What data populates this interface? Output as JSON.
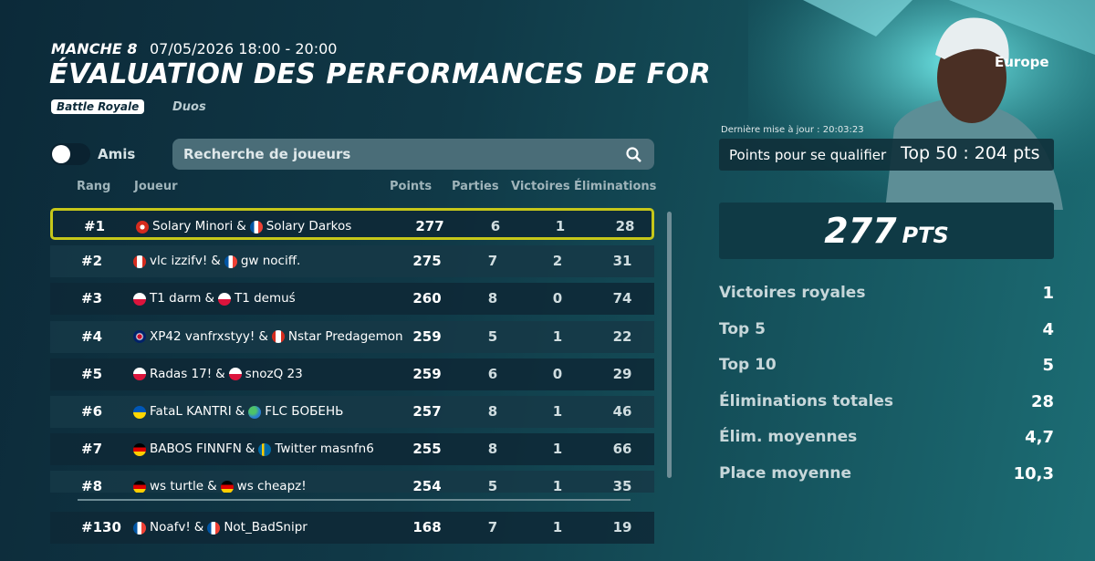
{
  "header": {
    "round": "MANCHE 8",
    "datetime": "07/05/2026 18:00 - 20:00",
    "title": "ÉVALUATION DES PERFORMANCES DE FOR",
    "mode": "Battle Royale",
    "team": "Duos"
  },
  "controls": {
    "toggle_label": "Amis",
    "search_placeholder": "Recherche de joueurs"
  },
  "table": {
    "columns": [
      "Rang",
      "Joueur",
      "Points",
      "Parties",
      "Victoires",
      "Éliminations"
    ],
    "separator": "&",
    "rows": [
      {
        "rank": "#1",
        "player1": "Solary Minori",
        "player2": "Solary Darkos",
        "points": 277,
        "games": 6,
        "wins": 1,
        "eliminations": 28
      },
      {
        "rank": "#2",
        "player1": "vlc izzifv!",
        "player2": "gw nociff.",
        "points": 275,
        "games": 7,
        "wins": 2,
        "eliminations": 31
      },
      {
        "rank": "#3",
        "player1": "T1 darm",
        "player2": "T1 demuś",
        "points": 260,
        "games": 8,
        "wins": 0,
        "eliminations": 74
      },
      {
        "rank": "#4",
        "player1": "XP42 vanfrxstyy!",
        "player2": "Nstar Predagemon",
        "points": 259,
        "games": 5,
        "wins": 1,
        "eliminations": 22
      },
      {
        "rank": "#5",
        "player1": "Radas 17!",
        "player2": "snozQ 23",
        "points": 259,
        "games": 6,
        "wins": 0,
        "eliminations": 29
      },
      {
        "rank": "#6",
        "player1": "FataL KANTRI",
        "player2": "FLC БОБЕНЬ",
        "points": 257,
        "games": 8,
        "wins": 1,
        "eliminations": 46
      },
      {
        "rank": "#7",
        "player1": "BABOS FINNFN",
        "player2": "Twitter masnfn6",
        "points": 255,
        "games": 8,
        "wins": 1,
        "eliminations": 66
      },
      {
        "rank": "#8",
        "player1": "ws turtle",
        "player2": "ws cheapz!",
        "points": 254,
        "games": 5,
        "wins": 1,
        "eliminations": 35
      }
    ],
    "own_row": {
      "rank": "#130",
      "player1": "Noafv!",
      "player2": "Not_BadSnipr",
      "points": 168,
      "games": 7,
      "wins": 1,
      "eliminations": 19
    }
  },
  "summary": {
    "region": "Europe",
    "updated": "Dernière mise à jour : 20:03:23",
    "qualify_label": "Points pour se qualifier",
    "qualify_value": "Top 50 : 204 pts",
    "score": 277,
    "score_unit": "PTS",
    "stats": [
      {
        "label": "Victoires royales",
        "value": 1
      },
      {
        "label": "Top 5",
        "value": 4
      },
      {
        "label": "Top 10",
        "value": 5
      },
      {
        "label": "Éliminations totales",
        "value": 28
      },
      {
        "label": "Élim. moyennes",
        "value": "4,7"
      },
      {
        "label": "Place moyenne",
        "value": "10,3"
      }
    ]
  }
}
